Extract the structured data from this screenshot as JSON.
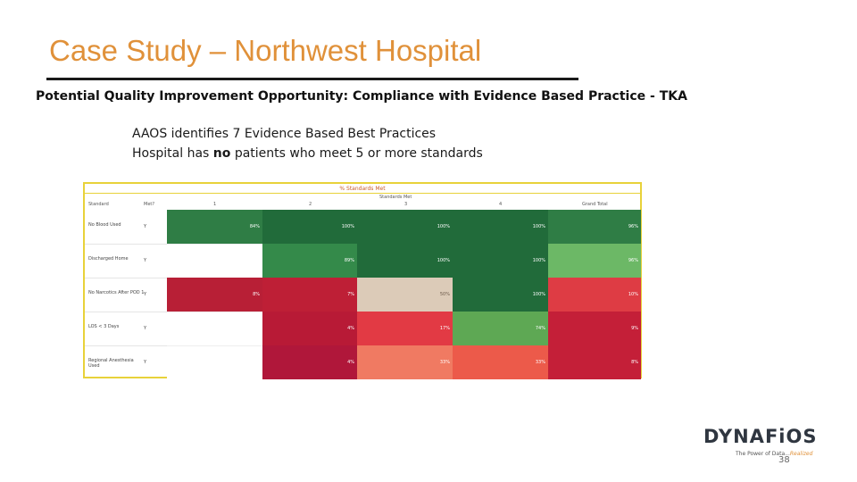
{
  "slide": {
    "title": "Case Study – Northwest Hospital",
    "subtitle": "Potential Quality Improvement Opportunity:  Compliance with Evidence Based Practice - TKA",
    "bullets": [
      "AAOS identifies 7 Evidence Based Best Practices",
      "Hospital has no patients who meet 5 or more standards"
    ],
    "page_number": "38"
  },
  "table": {
    "title": "% Standards Met",
    "group_header": "Standards Met",
    "col_headers": [
      "Standard",
      "Met?",
      "1",
      "2",
      "3",
      "4",
      "Grand Total"
    ],
    "rows": [
      {
        "label": "No Blood Used",
        "met": "Y",
        "cells": [
          {
            "v": "84%",
            "c": "#2f7d45"
          },
          {
            "v": "100%",
            "c": "#216b3a"
          },
          {
            "v": "100%",
            "c": "#216b3a"
          },
          {
            "v": "100%",
            "c": "#216b3a"
          },
          {
            "v": "96%",
            "c": "#2f7d45"
          }
        ]
      },
      {
        "label": "Discharged Home",
        "met": "Y",
        "cells": [
          {
            "v": "",
            "c": "#ffffff"
          },
          {
            "v": "89%",
            "c": "#348a4a"
          },
          {
            "v": "100%",
            "c": "#216b3a"
          },
          {
            "v": "100%",
            "c": "#216b3a"
          },
          {
            "v": "96%",
            "c": "#6cb866"
          }
        ]
      },
      {
        "label": "No Narcotics After POD 1",
        "met": "Y",
        "cells": [
          {
            "v": "8%",
            "c": "#b81f36"
          },
          {
            "v": "7%",
            "c": "#be1f36"
          },
          {
            "v": "50%",
            "c": "#dccbb8"
          },
          {
            "v": "100%",
            "c": "#216b3a"
          },
          {
            "v": "10%",
            "c": "#de3c44"
          }
        ]
      },
      {
        "label": "LOS < 3 Days",
        "met": "Y",
        "cells": [
          {
            "v": "",
            "c": "#ffffff"
          },
          {
            "v": "4%",
            "c": "#b81a36"
          },
          {
            "v": "17%",
            "c": "#e23a44"
          },
          {
            "v": "74%",
            "c": "#5ea854"
          },
          {
            "v": "9%",
            "c": "#c41f38"
          }
        ]
      },
      {
        "label": "Regional Anesthesia Used",
        "met": "Y",
        "cells": [
          {
            "v": "",
            "c": "#ffffff"
          },
          {
            "v": "4%",
            "c": "#b0173a"
          },
          {
            "v": "33%",
            "c": "#f07a62"
          },
          {
            "v": "33%",
            "c": "#ec5a4a"
          },
          {
            "v": "8%",
            "c": "#c41f38"
          }
        ]
      }
    ]
  },
  "logo": {
    "wordmark": "DYNAFiOS",
    "tagline_prefix": "The Power of Data...",
    "tagline_highlight": "Realized"
  }
}
